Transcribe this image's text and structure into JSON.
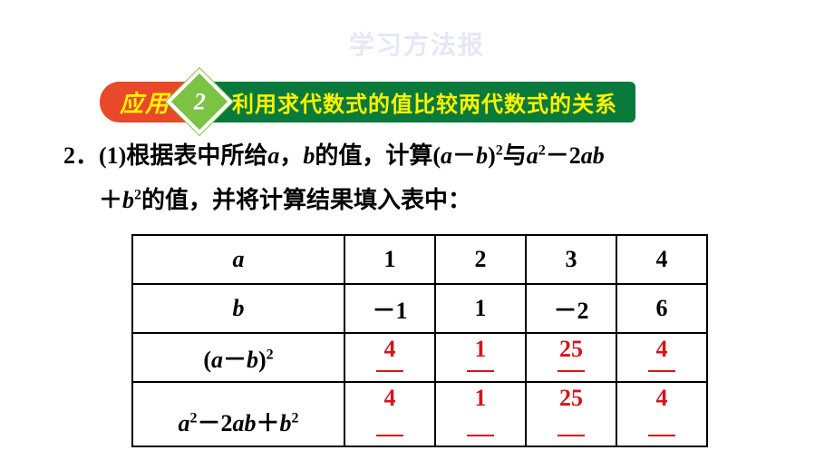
{
  "watermark": "学习方法报",
  "header": {
    "pill_left": "应用",
    "diamond_number": "2",
    "pill_right": "利用求代数式的值比较两代数式的关系"
  },
  "question": {
    "number": "2．",
    "part_label": "(1)",
    "text_prefix": "根据表中所给",
    "var_a": "a",
    "comma1": "，",
    "var_b": "b",
    "text_mid": "的值，计算(",
    "expr1_a": "a",
    "expr1_minus": "－",
    "expr1_b": "b",
    "expr1_close": ")",
    "expr1_sup": "2",
    "text_with": "与",
    "expr2_a": "a",
    "expr2_sup1": "2",
    "expr2_minus": "－2",
    "expr2_ab": "ab",
    "text_line2_prefix": "＋",
    "expr2_b": "b",
    "expr2_sup2": "2",
    "text_suffix": "的值，并将计算结果填入表中："
  },
  "table": {
    "colors": {
      "border": "#000000",
      "answer": "#d4151a",
      "text": "#000000"
    },
    "rows": [
      {
        "header_html": "a",
        "cells": [
          "1",
          "2",
          "3",
          "4"
        ]
      },
      {
        "header_html": "b",
        "cells": [
          "－1",
          "1",
          "－2",
          "6"
        ]
      },
      {
        "header_html": "(a－b)<sup>2</sup>",
        "answers": [
          "4",
          "1",
          "25",
          "4"
        ]
      },
      {
        "header_html": "a<sup>2</sup>－2ab＋b<sup>2</sup>",
        "answers": [
          "4",
          "1",
          "25",
          "4"
        ]
      }
    ]
  }
}
